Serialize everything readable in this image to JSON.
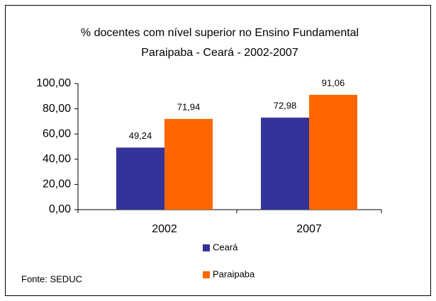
{
  "chart_data": {
    "type": "bar",
    "title": [
      "% docentes com nível superior no Ensino Fundamental",
      "Paraipaba - Ceará - 2002-2007"
    ],
    "categories": [
      "2002",
      "2007"
    ],
    "series": [
      {
        "name": "Ceará",
        "color": "#333399",
        "values": [
          49.24,
          72.98
        ],
        "value_labels": [
          "49,24",
          "72,98"
        ]
      },
      {
        "name": "Paraipaba",
        "color": "#ff6600",
        "values": [
          71.94,
          91.06
        ],
        "value_labels": [
          "71,94",
          "91,06"
        ]
      }
    ],
    "ylim": [
      0,
      100
    ],
    "yticks": [
      {
        "value": 0,
        "label": "0,00"
      },
      {
        "value": 20,
        "label": "20,00"
      },
      {
        "value": 40,
        "label": "40,00"
      },
      {
        "value": 60,
        "label": "60,00"
      },
      {
        "value": 80,
        "label": "80,00"
      },
      {
        "value": 100,
        "label": "100,00"
      }
    ],
    "source": "Fonte: SEDUC"
  }
}
